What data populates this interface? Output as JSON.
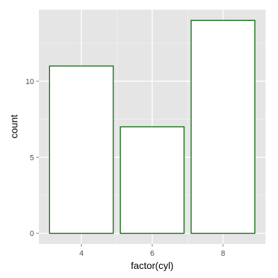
{
  "chart_data": {
    "type": "bar",
    "categories": [
      "4",
      "6",
      "8"
    ],
    "values": [
      11,
      7,
      14
    ],
    "xlabel": "factor(cyl)",
    "ylabel": "count",
    "ylim": [
      -0.7,
      14.7
    ],
    "y_ticks": [
      0,
      5,
      10
    ],
    "y_tick_labels": [
      "0",
      "5",
      "10"
    ],
    "grid": true,
    "legend": "none"
  },
  "colors": {
    "panel_background": "#e5e5e5",
    "grid_major": "#ffffff",
    "grid_minor": "#f2f2f2",
    "bar_fill": "#ffffff",
    "bar_outline": "#006400",
    "tick_mark": "#7f7f7f"
  }
}
